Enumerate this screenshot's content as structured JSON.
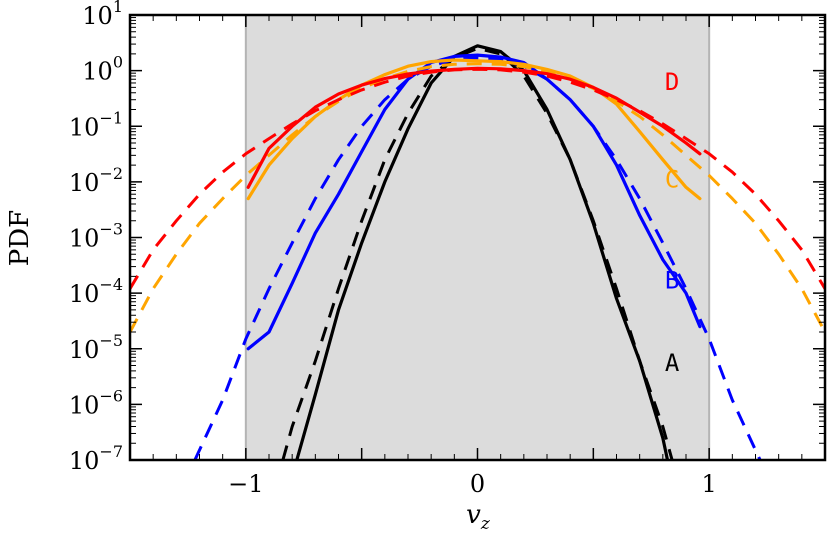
{
  "chart_data": {
    "type": "line",
    "xlabel": "v",
    "xlabel_sub": "z",
    "ylabel": "PDF",
    "xlim": [
      -1.5,
      1.5
    ],
    "ylim": [
      1e-07,
      10
    ],
    "yscale": "log",
    "grid": false,
    "shaded_region": {
      "x_from": -1,
      "x_to": 1,
      "color": "#dcdcdc"
    },
    "x_ticks": [
      {
        "value": -1,
        "label": "−1"
      },
      {
        "value": 0,
        "label": "0"
      },
      {
        "value": 1,
        "label": "1"
      }
    ],
    "y_ticks": [
      {
        "value": 1e-07,
        "base": "10",
        "exp": "−7"
      },
      {
        "value": 1e-06,
        "base": "10",
        "exp": "−6"
      },
      {
        "value": 1e-05,
        "base": "10",
        "exp": "−5"
      },
      {
        "value": 0.0001,
        "base": "10",
        "exp": "−4"
      },
      {
        "value": 0.001,
        "base": "10",
        "exp": "−3"
      },
      {
        "value": 0.01,
        "base": "10",
        "exp": "−2"
      },
      {
        "value": 0.1,
        "base": "10",
        "exp": "−1"
      },
      {
        "value": 1,
        "base": "10",
        "exp": "0"
      },
      {
        "value": 10,
        "base": "10",
        "exp": "1"
      }
    ],
    "series": [
      {
        "name": "A",
        "color": "#000000",
        "label_at": {
          "x": 0.84,
          "y": 4e-06
        },
        "solid": [
          [
            -0.78,
            1e-07
          ],
          [
            -0.7,
            1.5e-06
          ],
          [
            -0.6,
            5e-05
          ],
          [
            -0.5,
            0.0008
          ],
          [
            -0.4,
            0.01
          ],
          [
            -0.3,
            0.09
          ],
          [
            -0.2,
            0.6
          ],
          [
            -0.1,
            1.8
          ],
          [
            0,
            2.8
          ],
          [
            0.1,
            2.2
          ],
          [
            0.2,
            1.0
          ],
          [
            0.3,
            0.2
          ],
          [
            0.4,
            0.025
          ],
          [
            0.5,
            0.0018
          ],
          [
            0.6,
            8e-05
          ],
          [
            0.7,
            6e-06
          ],
          [
            0.8,
            2.5e-07
          ],
          [
            0.82,
            1e-07
          ]
        ],
        "dashed": [
          [
            -0.84,
            1e-07
          ],
          [
            -0.8,
            4e-07
          ],
          [
            -0.7,
            6e-06
          ],
          [
            -0.6,
            0.00012
          ],
          [
            -0.5,
            0.002
          ],
          [
            -0.4,
            0.025
          ],
          [
            -0.3,
            0.17
          ],
          [
            -0.2,
            0.8
          ],
          [
            -0.1,
            1.7
          ],
          [
            0,
            2.5
          ],
          [
            0.1,
            2.0
          ],
          [
            0.2,
            0.8
          ],
          [
            0.3,
            0.17
          ],
          [
            0.4,
            0.025
          ],
          [
            0.5,
            0.002
          ],
          [
            0.6,
            0.00012
          ],
          [
            0.7,
            6e-06
          ],
          [
            0.8,
            4e-07
          ],
          [
            0.84,
            1e-07
          ]
        ]
      },
      {
        "name": "B",
        "color": "#0000ff",
        "label_at": {
          "x": 0.84,
          "y": 0.00012
        },
        "solid": [
          [
            -0.99,
            1e-05
          ],
          [
            -0.9,
            2e-05
          ],
          [
            -0.8,
            0.00015
          ],
          [
            -0.7,
            0.0012
          ],
          [
            -0.6,
            0.006
          ],
          [
            -0.5,
            0.035
          ],
          [
            -0.4,
            0.2
          ],
          [
            -0.3,
            0.7
          ],
          [
            -0.2,
            1.4
          ],
          [
            -0.1,
            1.8
          ],
          [
            0,
            1.9
          ],
          [
            0.1,
            1.75
          ],
          [
            0.2,
            1.4
          ],
          [
            0.3,
            0.7
          ],
          [
            0.4,
            0.3
          ],
          [
            0.5,
            0.1
          ],
          [
            0.6,
            0.02
          ],
          [
            0.7,
            0.0025
          ],
          [
            0.8,
            0.0004
          ],
          [
            0.9,
            0.0001
          ],
          [
            0.96,
            2.5e-05
          ]
        ],
        "dashed": [
          [
            -1.22,
            1e-07
          ],
          [
            -1.1,
            1.2e-06
          ],
          [
            -1.0,
            1.5e-05
          ],
          [
            -0.9,
            0.00012
          ],
          [
            -0.8,
            0.0008
          ],
          [
            -0.7,
            0.005
          ],
          [
            -0.6,
            0.025
          ],
          [
            -0.5,
            0.1
          ],
          [
            -0.4,
            0.3
          ],
          [
            -0.3,
            0.7
          ],
          [
            -0.2,
            1.2
          ],
          [
            -0.1,
            1.6
          ],
          [
            0,
            1.7
          ],
          [
            0.1,
            1.6
          ],
          [
            0.2,
            1.2
          ],
          [
            0.3,
            0.7
          ],
          [
            0.4,
            0.3
          ],
          [
            0.5,
            0.1
          ],
          [
            0.6,
            0.025
          ],
          [
            0.7,
            0.005
          ],
          [
            0.8,
            0.0008
          ],
          [
            0.9,
            0.00012
          ],
          [
            1.0,
            1.5e-05
          ],
          [
            1.1,
            1.2e-06
          ],
          [
            1.22,
            1e-07
          ]
        ]
      },
      {
        "name": "C",
        "color": "#ffa500",
        "label_at": {
          "x": 0.84,
          "y": 0.008
        },
        "solid": [
          [
            -0.99,
            0.005
          ],
          [
            -0.9,
            0.02
          ],
          [
            -0.8,
            0.06
          ],
          [
            -0.7,
            0.15
          ],
          [
            -0.6,
            0.3
          ],
          [
            -0.5,
            0.55
          ],
          [
            -0.4,
            0.85
          ],
          [
            -0.3,
            1.2
          ],
          [
            -0.2,
            1.45
          ],
          [
            -0.1,
            1.55
          ],
          [
            0,
            1.5
          ],
          [
            0.1,
            1.45
          ],
          [
            0.2,
            1.3
          ],
          [
            0.3,
            1.05
          ],
          [
            0.4,
            0.8
          ],
          [
            0.5,
            0.5
          ],
          [
            0.6,
            0.25
          ],
          [
            0.7,
            0.08
          ],
          [
            0.8,
            0.025
          ],
          [
            0.9,
            0.008
          ],
          [
            0.96,
            0.005
          ]
        ],
        "dashed": [
          [
            -1.5,
            2e-05
          ],
          [
            -1.4,
            0.00012
          ],
          [
            -1.3,
            0.0005
          ],
          [
            -1.2,
            0.0018
          ],
          [
            -1.1,
            0.005
          ],
          [
            -1.0,
            0.013
          ],
          [
            -0.9,
            0.03
          ],
          [
            -0.8,
            0.07
          ],
          [
            -0.7,
            0.15
          ],
          [
            -0.6,
            0.28
          ],
          [
            -0.5,
            0.48
          ],
          [
            -0.4,
            0.72
          ],
          [
            -0.3,
            0.97
          ],
          [
            -0.2,
            1.18
          ],
          [
            -0.1,
            1.3
          ],
          [
            0,
            1.33
          ],
          [
            0.1,
            1.3
          ],
          [
            0.2,
            1.18
          ],
          [
            0.3,
            0.97
          ],
          [
            0.4,
            0.72
          ],
          [
            0.5,
            0.48
          ],
          [
            0.6,
            0.28
          ],
          [
            0.7,
            0.15
          ],
          [
            0.8,
            0.07
          ],
          [
            0.9,
            0.03
          ],
          [
            1.0,
            0.013
          ],
          [
            1.1,
            0.005
          ],
          [
            1.2,
            0.0018
          ],
          [
            1.3,
            0.0005
          ],
          [
            1.4,
            0.00012
          ],
          [
            1.5,
            2e-05
          ]
        ]
      },
      {
        "name": "D",
        "color": "#ff0000",
        "label_at": {
          "x": 0.84,
          "y": 0.45
        },
        "solid": [
          [
            -0.99,
            0.008
          ],
          [
            -0.9,
            0.04
          ],
          [
            -0.8,
            0.1
          ],
          [
            -0.7,
            0.22
          ],
          [
            -0.6,
            0.38
          ],
          [
            -0.5,
            0.55
          ],
          [
            -0.4,
            0.72
          ],
          [
            -0.3,
            0.87
          ],
          [
            -0.2,
            0.98
          ],
          [
            -0.1,
            1.05
          ],
          [
            0,
            1.1
          ],
          [
            0.1,
            1.08
          ],
          [
            0.2,
            1.0
          ],
          [
            0.3,
            0.88
          ],
          [
            0.4,
            0.7
          ],
          [
            0.5,
            0.5
          ],
          [
            0.6,
            0.32
          ],
          [
            0.7,
            0.18
          ],
          [
            0.8,
            0.1
          ],
          [
            0.9,
            0.05
          ],
          [
            0.96,
            0.032
          ]
        ],
        "dashed": [
          [
            -1.5,
            0.00012
          ],
          [
            -1.4,
            0.0006
          ],
          [
            -1.3,
            0.002
          ],
          [
            -1.2,
            0.006
          ],
          [
            -1.1,
            0.015
          ],
          [
            -1.0,
            0.032
          ],
          [
            -0.9,
            0.06
          ],
          [
            -0.8,
            0.11
          ],
          [
            -0.7,
            0.19
          ],
          [
            -0.6,
            0.3
          ],
          [
            -0.5,
            0.45
          ],
          [
            -0.4,
            0.62
          ],
          [
            -0.3,
            0.8
          ],
          [
            -0.2,
            0.94
          ],
          [
            -0.1,
            1.03
          ],
          [
            0,
            1.06
          ],
          [
            0.1,
            1.03
          ],
          [
            0.2,
            0.94
          ],
          [
            0.3,
            0.8
          ],
          [
            0.4,
            0.62
          ],
          [
            0.5,
            0.45
          ],
          [
            0.6,
            0.3
          ],
          [
            0.7,
            0.19
          ],
          [
            0.8,
            0.11
          ],
          [
            0.9,
            0.06
          ],
          [
            1.0,
            0.032
          ],
          [
            1.1,
            0.015
          ],
          [
            1.2,
            0.006
          ],
          [
            1.3,
            0.002
          ],
          [
            1.4,
            0.0006
          ],
          [
            1.5,
            0.00012
          ]
        ]
      }
    ]
  }
}
